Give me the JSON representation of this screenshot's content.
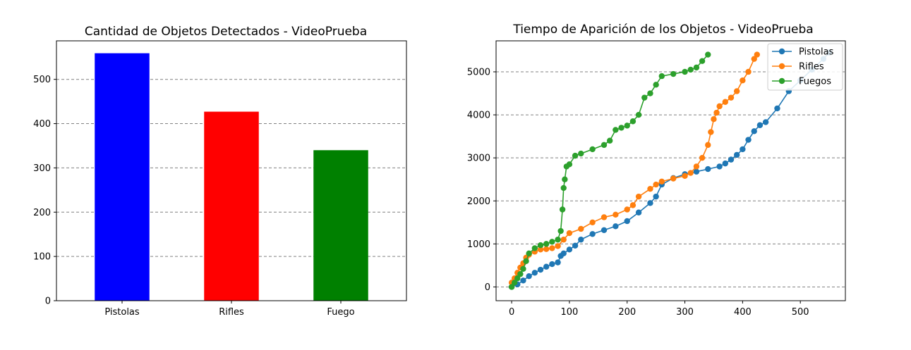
{
  "chart_data": [
    {
      "type": "bar",
      "title": "Cantidad de Objetos Detectados - VideoPrueba",
      "categories": [
        "Pistolas",
        "Rifles",
        "Fuego"
      ],
      "values": [
        559,
        427,
        340
      ],
      "colors": [
        "#0000ff",
        "#ff0000",
        "#008000"
      ],
      "ylim": [
        0,
        587
      ],
      "yticks": [
        0,
        100,
        200,
        300,
        400,
        500
      ],
      "grid": "y-dashed",
      "xlabel": "",
      "ylabel": ""
    },
    {
      "type": "line",
      "title": "Tiempo de Aparición de los Objetos - VideoPrueba",
      "xlim": [
        -27,
        578
      ],
      "ylim": [
        -320,
        5720
      ],
      "xticks": [
        0,
        100,
        200,
        300,
        400,
        500
      ],
      "yticks": [
        0,
        1000,
        2000,
        3000,
        4000,
        5000
      ],
      "grid": "y-dashed",
      "legend_position": "top-right",
      "markers": true,
      "series": [
        {
          "name": "Pistolas",
          "color": "#1f77b4",
          "x": [
            0,
            10,
            20,
            30,
            40,
            50,
            60,
            70,
            80,
            85,
            90,
            100,
            110,
            120,
            140,
            160,
            180,
            200,
            220,
            240,
            250,
            260,
            280,
            300,
            320,
            340,
            360,
            370,
            380,
            390,
            400,
            410,
            420,
            430,
            440,
            460,
            480,
            500,
            520,
            540,
            550
          ],
          "y": [
            0,
            60,
            150,
            250,
            330,
            400,
            470,
            530,
            570,
            720,
            780,
            870,
            960,
            1100,
            1230,
            1320,
            1410,
            1530,
            1730,
            1950,
            2100,
            2380,
            2530,
            2620,
            2680,
            2740,
            2800,
            2870,
            2960,
            3070,
            3200,
            3420,
            3620,
            3760,
            3830,
            4150,
            4550,
            4800,
            5050,
            5300,
            5450
          ]
        },
        {
          "name": "Rifles",
          "color": "#ff7f0e",
          "x": [
            0,
            5,
            10,
            15,
            20,
            25,
            30,
            40,
            50,
            60,
            70,
            80,
            90,
            100,
            120,
            140,
            160,
            180,
            200,
            210,
            220,
            240,
            250,
            260,
            280,
            300,
            310,
            320,
            330,
            340,
            345,
            350,
            355,
            360,
            370,
            380,
            390,
            400,
            410,
            420,
            425
          ],
          "y": [
            100,
            200,
            330,
            450,
            550,
            680,
            750,
            820,
            870,
            880,
            900,
            950,
            1100,
            1250,
            1350,
            1500,
            1620,
            1680,
            1800,
            1900,
            2100,
            2280,
            2380,
            2450,
            2520,
            2580,
            2650,
            2800,
            3000,
            3300,
            3600,
            3900,
            4050,
            4200,
            4300,
            4400,
            4550,
            4800,
            5000,
            5300,
            5400
          ]
        },
        {
          "name": "Fuegos",
          "color": "#2ca02c",
          "x": [
            0,
            5,
            10,
            15,
            20,
            25,
            30,
            40,
            50,
            60,
            70,
            80,
            85,
            88,
            90,
            92,
            95,
            100,
            110,
            120,
            140,
            160,
            170,
            180,
            190,
            200,
            210,
            220,
            230,
            240,
            250,
            260,
            280,
            300,
            310,
            320,
            330,
            340
          ],
          "y": [
            0,
            100,
            200,
            300,
            420,
            600,
            780,
            900,
            970,
            1000,
            1050,
            1100,
            1300,
            1800,
            2300,
            2500,
            2800,
            2850,
            3050,
            3100,
            3200,
            3300,
            3400,
            3650,
            3700,
            3750,
            3850,
            4000,
            4400,
            4500,
            4700,
            4900,
            4950,
            5000,
            5050,
            5100,
            5250,
            5400
          ]
        }
      ]
    }
  ]
}
